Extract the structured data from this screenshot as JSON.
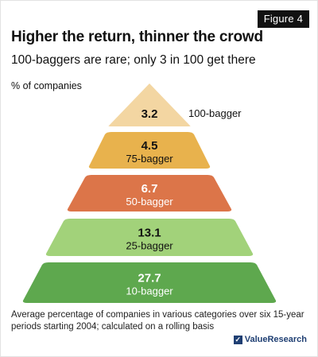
{
  "figure_label": "Figure 4",
  "title": "Higher the return, thinner the crowd",
  "subtitle": "100-baggers are rare; only 3 in 100 get there",
  "unit_label": "% of companies",
  "footnote": "Average percentage of companies in various categories over six 15-year periods starting 2004; calculated on a rolling basis",
  "logo_text": "ValueResearch",
  "chart_data": {
    "type": "bar",
    "layout": "pyramid",
    "categories": [
      "100-bagger",
      "75-bagger",
      "50-bagger",
      "25-bagger",
      "10-bagger"
    ],
    "values": [
      3.2,
      4.5,
      6.7,
      13.1,
      27.7
    ],
    "value_labels": [
      "3.2",
      "4.5",
      "6.7",
      "13.1",
      "27.7"
    ],
    "colors": [
      "#f3d6a2",
      "#e8b24d",
      "#dc7549",
      "#a2d27a",
      "#5ea84e"
    ],
    "title": "Higher the return, thinner the crowd",
    "ylabel": "% of companies"
  }
}
